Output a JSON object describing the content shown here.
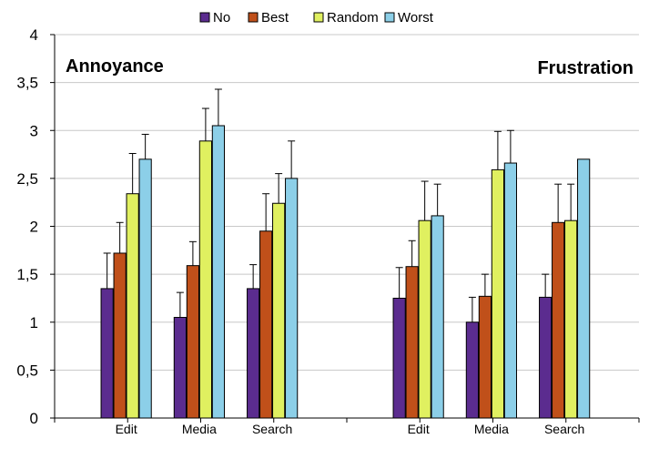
{
  "chart_data": {
    "type": "bar",
    "ylim": [
      0,
      4
    ],
    "yticks": [
      "0",
      "0,5",
      "1",
      "1,5",
      "2",
      "2,5",
      "3",
      "3,5",
      "4"
    ],
    "grid": true,
    "legend_position": "top",
    "panel_labels": [
      "Annoyance",
      "Frustration"
    ],
    "categories": [
      "Edit",
      "Media",
      "Search",
      "",
      "Edit",
      "Media",
      "Search"
    ],
    "series": [
      {
        "name": "No",
        "color": "#5b2c8f",
        "values": [
          1.35,
          1.05,
          1.35,
          null,
          1.25,
          1.0,
          1.26
        ],
        "errors": [
          0.37,
          0.26,
          0.25,
          null,
          0.32,
          0.26,
          0.24
        ]
      },
      {
        "name": "Best",
        "color": "#c0501a",
        "values": [
          1.72,
          1.59,
          1.95,
          null,
          1.58,
          1.27,
          2.04
        ],
        "errors": [
          0.32,
          0.25,
          0.39,
          null,
          0.27,
          0.23,
          0.4
        ]
      },
      {
        "name": "Random",
        "color": "#e0f060",
        "values": [
          2.34,
          2.89,
          2.24,
          null,
          2.06,
          2.59,
          2.06
        ],
        "errors": [
          0.42,
          0.34,
          0.31,
          null,
          0.41,
          0.4,
          0.38
        ]
      },
      {
        "name": "Worst",
        "color": "#8ccfe8",
        "values": [
          2.7,
          3.05,
          2.5,
          null,
          2.11,
          2.66,
          2.7
        ],
        "errors": [
          0.26,
          0.38,
          0.39,
          null,
          0.33,
          0.34,
          null
        ]
      }
    ]
  }
}
